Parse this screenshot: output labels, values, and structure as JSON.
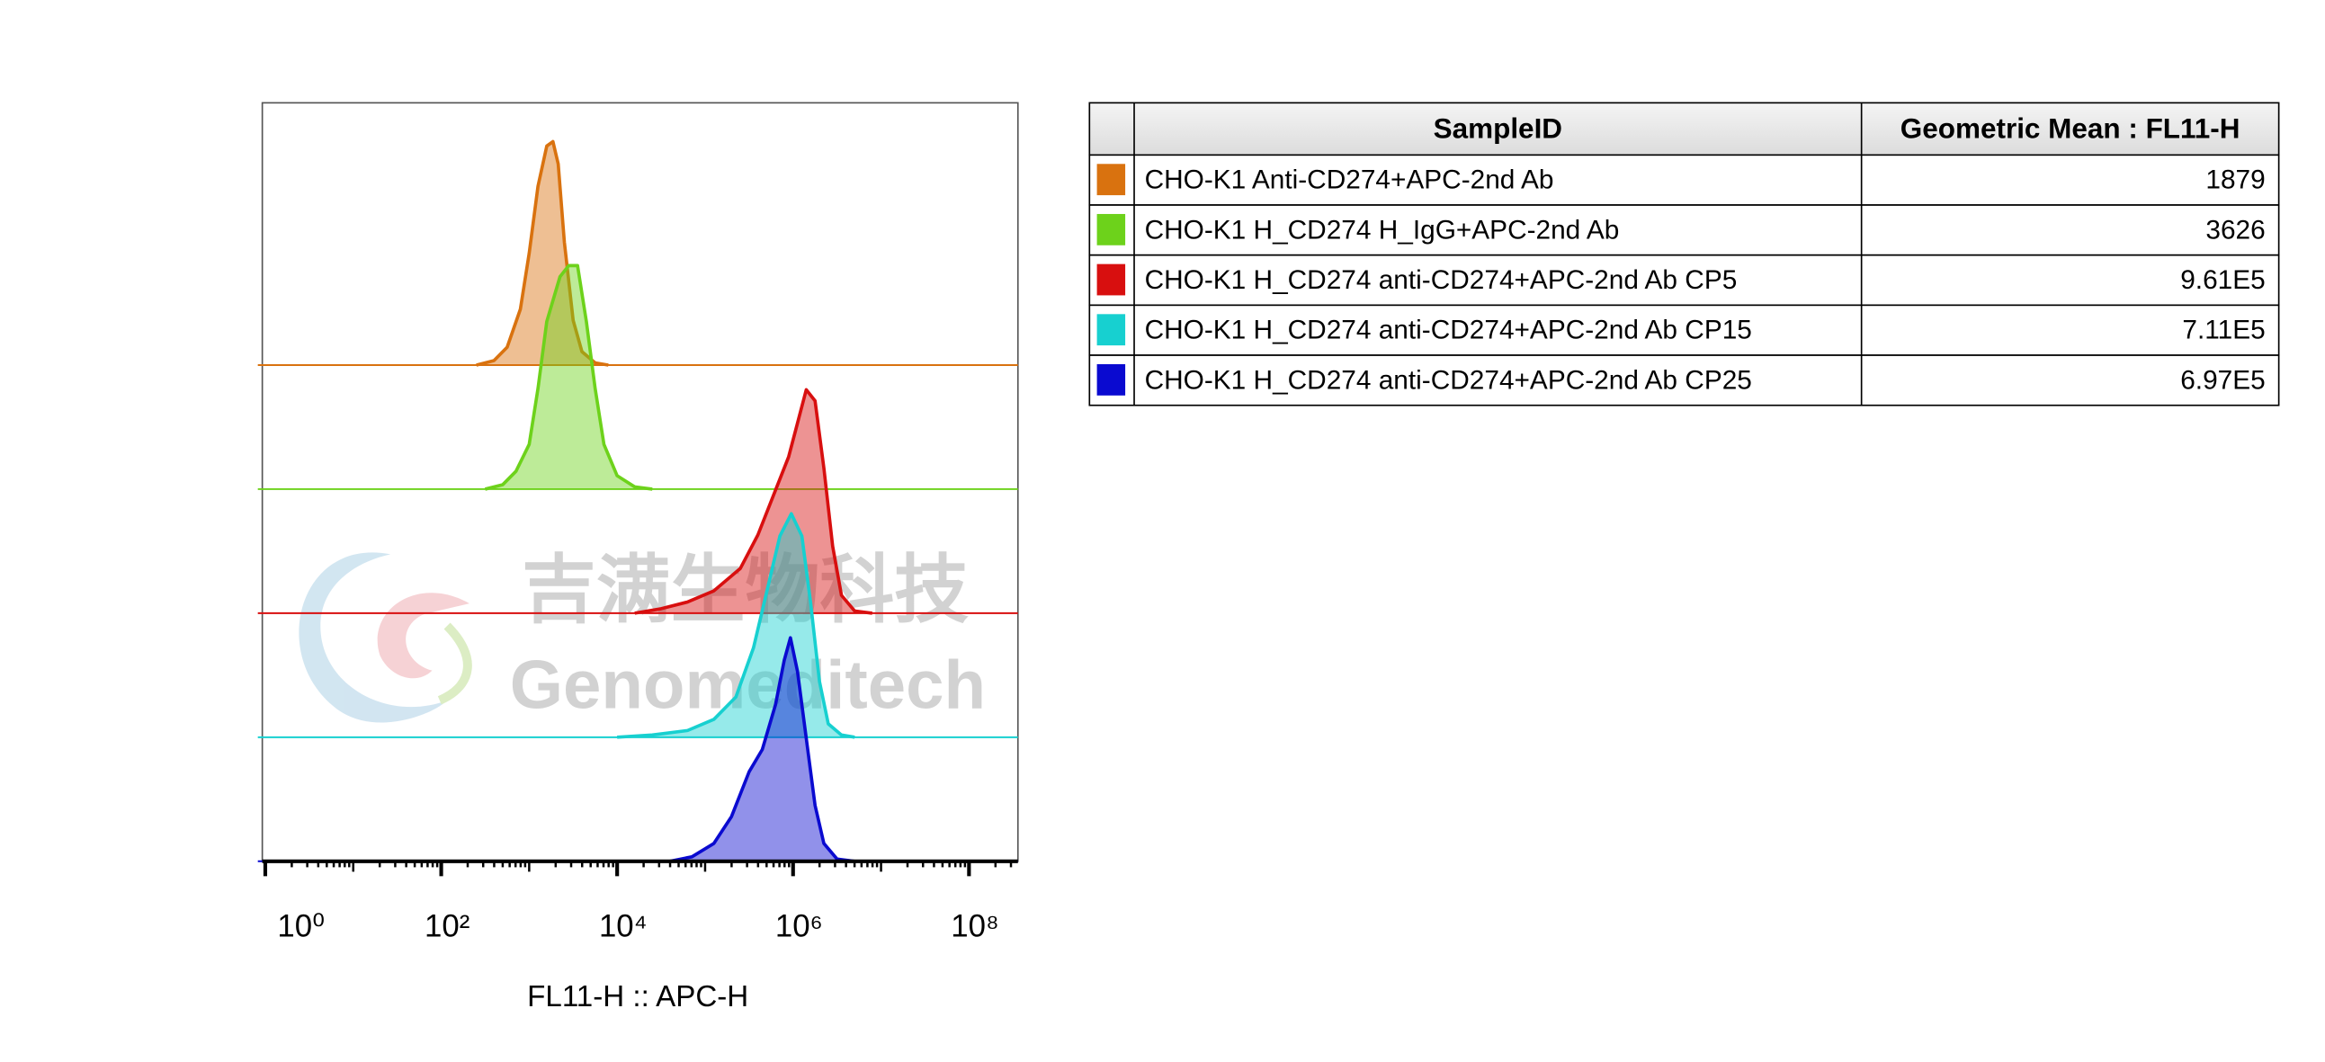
{
  "chart_data": {
    "type": "ridgeline",
    "x_label": "FL11-H :: APC-H",
    "x_log_scale": true,
    "xlim": [
      1,
      360000000
    ],
    "xticks": [
      {
        "value": 1,
        "label": "10⁰"
      },
      {
        "value": 100,
        "label": "10²"
      },
      {
        "value": 10000,
        "label": "10⁴"
      },
      {
        "value": 1000000,
        "label": "10⁶"
      },
      {
        "value": 100000000,
        "label": "10⁸"
      }
    ],
    "watermark": [
      "吉满生物科技",
      "Genomeditech"
    ],
    "table_columns": [
      "SampleID",
      "Geometric Mean : FL11-H"
    ],
    "series": [
      {
        "name": "CHO-K1 Anti-CD274+APC-2nd Ab",
        "color": "#d9720f",
        "geometric_mean": 1879,
        "x": [
          251,
          398,
          562,
          794,
          1000,
          1259,
          1585,
          1862,
          2138,
          2512,
          3162,
          3981,
          5623,
          7943
        ],
        "values": [
          0,
          2,
          8,
          25,
          50,
          80,
          98,
          100,
          90,
          55,
          20,
          6,
          1,
          0
        ]
      },
      {
        "name": "CHO-K1 H_CD274 H_IgG+APC-2nd Ab",
        "color": "#6dd21b",
        "geometric_mean": 3626,
        "x": [
          316,
          501,
          708,
          1000,
          1259,
          1585,
          2239,
          2818,
          3548,
          4467,
          5623,
          7079,
          10000,
          15849,
          25119
        ],
        "values": [
          0,
          2,
          8,
          20,
          45,
          75,
          95,
          100,
          100,
          75,
          45,
          20,
          6,
          1,
          0
        ]
      },
      {
        "name": "CHO-K1 H_CD274 anti-CD274+APC-2nd Ab CP5",
        "color": "#d80f0f",
        "geometric_mean": 961000,
        "geometric_mean_label": "9.61E5",
        "x": [
          15849,
          31623,
          63096,
          125893,
          251189,
          398107,
          630957,
          891251,
          1122018,
          1412538,
          1778279,
          2238721,
          2818383,
          3548134,
          5011872,
          7943282
        ],
        "values": [
          0,
          2,
          5,
          10,
          20,
          35,
          55,
          70,
          85,
          100,
          95,
          65,
          30,
          8,
          1,
          0
        ]
      },
      {
        "name": "CHO-K1 H_CD274 anti-CD274+APC-2nd Ab CP15",
        "color": "#17d0d0",
        "geometric_mean": 711000,
        "geometric_mean_label": "7.11E5",
        "x": [
          10000,
          25119,
          63096,
          125893,
          223872,
          354813,
          501187,
          707946,
          954993,
          1258925,
          1584893,
          1995262,
          2511886,
          3548134,
          5011872
        ],
        "values": [
          0,
          1,
          3,
          8,
          18,
          40,
          65,
          90,
          100,
          90,
          60,
          25,
          6,
          1,
          0
        ]
      },
      {
        "name": "CHO-K1 H_CD274 anti-CD274+APC-2nd Ab CP25",
        "color": "#0a0ad0",
        "geometric_mean": 697000,
        "geometric_mean_label": "6.97E5",
        "x": [
          39811,
          70795,
          125893,
          199526,
          316228,
          446684,
          630957,
          794328,
          933254,
          1122018,
          1412538,
          1778279,
          2238721,
          3162278,
          5011872
        ],
        "values": [
          0,
          2,
          8,
          20,
          40,
          50,
          70,
          90,
          100,
          85,
          55,
          25,
          8,
          1,
          0
        ]
      }
    ]
  }
}
